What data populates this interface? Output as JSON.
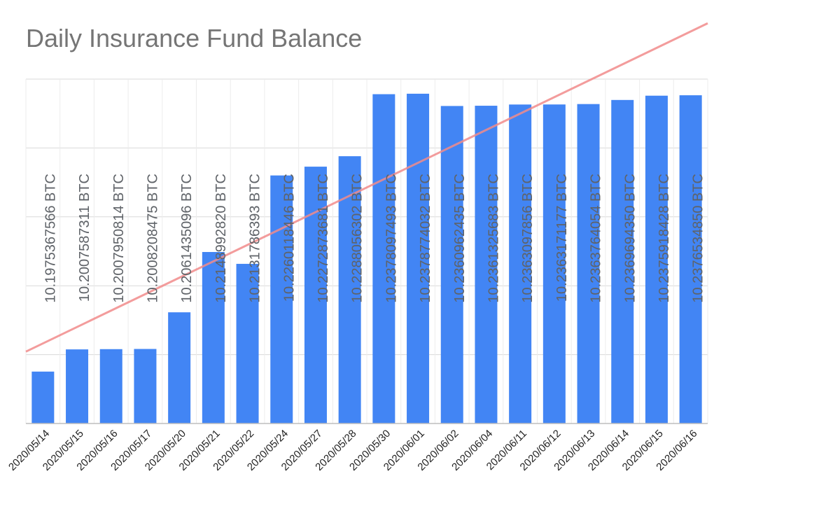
{
  "colors": {
    "bar": "#4285f4",
    "trendline": "#f28b8b",
    "gridline": "#d9d9d9",
    "axis": "#bdbdbd",
    "title": "#757575",
    "label": "#5f6368"
  },
  "chart_data": {
    "type": "bar",
    "title": "Daily Insurance Fund Balance",
    "xlabel": "",
    "ylabel": "",
    "ylim": [
      10.19,
      10.24
    ],
    "grid": true,
    "y_tick_labels_shown": false,
    "trendline": "linear",
    "categories": [
      "2020/05/14",
      "2020/05/15",
      "2020/05/16",
      "2020/05/17",
      "2020/05/20",
      "2020/05/21",
      "2020/05/22",
      "2020/05/24",
      "2020/05/27",
      "2020/05/28",
      "2020/05/30",
      "2020/06/01",
      "2020/06/02",
      "2020/06/04",
      "2020/06/11",
      "2020/06/12",
      "2020/06/13",
      "2020/06/14",
      "2020/06/15",
      "2020/06/16"
    ],
    "values": [
      10.1975367566,
      10.2007587311,
      10.2007950814,
      10.2008208475,
      10.2061435096,
      10.214899282,
      10.2131786393,
      10.2260118446,
      10.2272873681,
      10.2288056302,
      10.2378097493,
      10.2378774032,
      10.2360962435,
      10.2361325683,
      10.2363097856,
      10.2363171177,
      10.2363764054,
      10.236969435,
      10.2375918428,
      10.237653485
    ],
    "data_labels": [
      "10.1975367566 BTC",
      "10.2007587311 BTC",
      "10.2007950814 BTC",
      "10.2008208475 BTC",
      "10.2061435096 BTC",
      "10.2148992820 BTC",
      "10.2131786393 BTC",
      "10.2260118446 BTC",
      "10.2272873681 BTC",
      "10.2288056302 BTC",
      "10.2378097493 BTC",
      "10.2378774032 BTC",
      "10.2360962435 BTC",
      "10.2361325683 BTC",
      "10.2363097856 BTC",
      "10.2363171177 BTC",
      "10.2363764054 BTC",
      "10.2369694350 BTC",
      "10.2375918428 BTC",
      "10.2376534850 BTC"
    ]
  }
}
